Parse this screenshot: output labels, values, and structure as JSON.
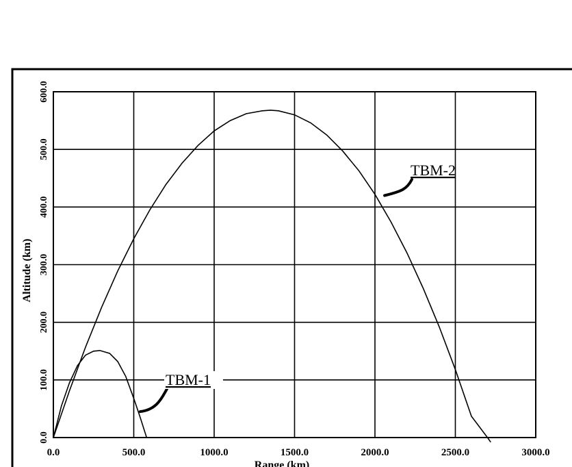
{
  "chart_data": {
    "type": "line",
    "title": "",
    "xlabel": "Range (km)",
    "ylabel": "Altitude (km)",
    "xlim": [
      0,
      3000
    ],
    "ylim": [
      0,
      600
    ],
    "grid": true,
    "x_ticks": [
      0,
      500,
      1000,
      1500,
      2000,
      2500,
      3000
    ],
    "y_ticks": [
      0,
      100,
      200,
      300,
      400,
      500,
      600
    ],
    "x_tick_labels": [
      "0.0",
      "500.0",
      "1000.0",
      "1500.0",
      "2000.0",
      "2500.0",
      "3000.0"
    ],
    "y_tick_labels": [
      "0.0",
      "100.0",
      "200.0",
      "300.0",
      "400.0",
      "500.0",
      "600.0"
    ],
    "series": [
      {
        "name": "TBM-1",
        "x": [
          0,
          50,
          100,
          150,
          200,
          250,
          290,
          350,
          400,
          450,
          500,
          540,
          580
        ],
        "y": [
          0,
          55,
          95,
          125,
          143,
          150,
          151,
          146,
          132,
          106,
          68,
          35,
          0
        ],
        "label_anchor": {
          "x": 540,
          "y": 45
        }
      },
      {
        "name": "TBM-2",
        "x": [
          0,
          100,
          200,
          300,
          400,
          500,
          600,
          700,
          800,
          900,
          1000,
          1100,
          1200,
          1300,
          1350,
          1400,
          1500,
          1600,
          1700,
          1800,
          1900,
          2000,
          2100,
          2200,
          2300,
          2400,
          2500,
          2600,
          2700,
          2720
        ],
        "y": [
          0,
          81,
          157,
          226,
          289,
          345,
          395,
          439,
          476,
          507,
          532,
          550,
          562,
          567,
          568,
          567,
          560,
          546,
          525,
          497,
          463,
          422,
          374,
          320,
          259,
          192,
          118,
          37,
          0,
          -8
        ],
        "label_anchor": {
          "x": 2060,
          "y": 420
        }
      }
    ]
  }
}
